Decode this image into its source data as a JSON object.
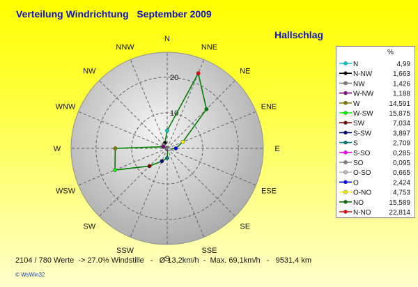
{
  "chart_data": {
    "type": "radar",
    "title": "Verteilung Windrichtung   September 2009",
    "subtitle": "Hallschlag",
    "legend_unit": "%",
    "directions": [
      "N",
      "NNE",
      "NE",
      "ENE",
      "E",
      "ESE",
      "SE",
      "SSE",
      "S",
      "SSW",
      "SW",
      "WSW",
      "W",
      "WNW",
      "NW",
      "NNW"
    ],
    "r_ticks": [
      10,
      20
    ],
    "r_max": 27,
    "series_values": [
      4.99,
      22.814,
      15.589,
      4.753,
      2.424,
      0.665,
      0.095,
      0.285,
      2.709,
      3.897,
      7.034,
      15.875,
      14.591,
      1.188,
      1.426,
      1.663
    ],
    "legend": [
      {
        "label": "N",
        "value": "4,99",
        "color": "#00cccc"
      },
      {
        "label": "N-NW",
        "value": "1,663",
        "color": "#000000"
      },
      {
        "label": "NW",
        "value": "1,426",
        "color": "#808080"
      },
      {
        "label": "W-NW",
        "value": "1,188",
        "color": "#800080"
      },
      {
        "label": "W",
        "value": "14,591",
        "color": "#808000"
      },
      {
        "label": "W-SW",
        "value": "15,875",
        "color": "#00ff00"
      },
      {
        "label": "SW",
        "value": "7,034",
        "color": "#800000"
      },
      {
        "label": "S-SW",
        "value": "3,897",
        "color": "#000080"
      },
      {
        "label": "S",
        "value": "2,709",
        "color": "#008080"
      },
      {
        "label": "S-SO",
        "value": "0,285",
        "color": "#ff00ff"
      },
      {
        "label": "SO",
        "value": "0,095",
        "color": "#808080"
      },
      {
        "label": "O-SO",
        "value": "0,665",
        "color": "#c0c0c0"
      },
      {
        "label": "O",
        "value": "2,424",
        "color": "#0000ff"
      },
      {
        "label": "O-NO",
        "value": "4,753",
        "color": "#ffff00"
      },
      {
        "label": "NO",
        "value": "15,589",
        "color": "#008000"
      },
      {
        "label": "N-NO",
        "value": "22,814",
        "color": "#ff0000"
      }
    ],
    "line_color": "#008000",
    "footer": "2104 / 780 Werte  -> 27.0% Windstille   -   Ø 13,2km/h  -  Max. 69,1km/h   -   9531,4 km",
    "copyright": "© WsWin32"
  }
}
